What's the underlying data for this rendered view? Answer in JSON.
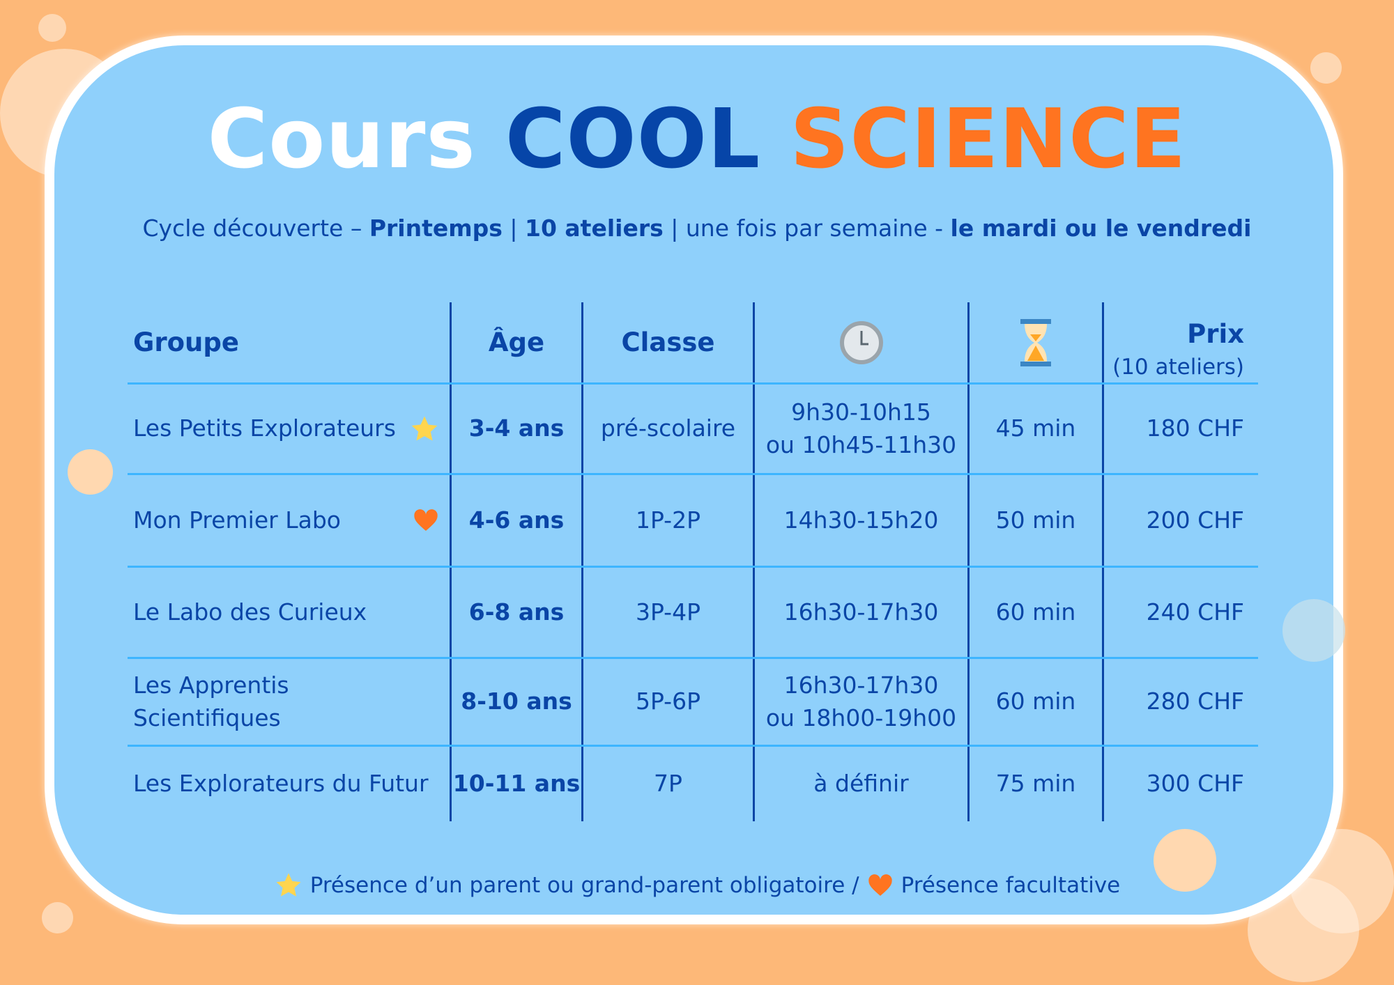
{
  "title": {
    "part1": "Cours",
    "part2": "COOL",
    "part3": "SCIENCE"
  },
  "subtitle": {
    "t1": "Cycle découverte – ",
    "b1": "Printemps",
    "t2": " | ",
    "b2": "10 ateliers",
    "t3": " | une fois par semaine - ",
    "b3": "le mardi ou le vendredi"
  },
  "table": {
    "headers": {
      "group": "Groupe",
      "age": "Âge",
      "classe": "Classe",
      "time_icon": "clock-icon",
      "duration_icon": "hourglass-icon",
      "price": "Prix",
      "price_sub": "(10 ateliers)"
    },
    "rows": [
      {
        "group": "Les Petits Explorateurs",
        "marker": "star",
        "age": "3-4 ans",
        "classe": "pré-scolaire",
        "time": "9h30-10h15",
        "time2": "ou 10h45-11h30",
        "duration": "45 min",
        "price": "180 CHF"
      },
      {
        "group": "Mon Premier Labo",
        "marker": "heart",
        "age": "4-6 ans",
        "classe": "1P-2P",
        "time": "14h30-15h20",
        "time2": "",
        "duration": "50 min",
        "price": "200 CHF"
      },
      {
        "group": "Le Labo des Curieux",
        "marker": "",
        "age": "6-8 ans",
        "classe": "3P-4P",
        "time": "16h30-17h30",
        "time2": "",
        "duration": "60 min",
        "price": "240 CHF"
      },
      {
        "group": "Les Apprentis Scientifiques",
        "marker": "",
        "age": "8-10 ans",
        "classe": "5P-6P",
        "time": "16h30-17h30",
        "time2": "ou 18h00-19h00",
        "duration": "60 min",
        "price": "280 CHF"
      },
      {
        "group": "Les Explorateurs du Futur",
        "marker": "",
        "age": "10-11 ans",
        "classe": "7P",
        "time": "à définir",
        "time2": "",
        "duration": "75 min",
        "price": "300 CHF"
      }
    ]
  },
  "legend": {
    "star_text": "Présence d’un parent ou grand-parent obligatoire /",
    "heart_text": "Présence facultative"
  },
  "colors": {
    "background": "#fdb878",
    "panel": "#8fd0fb",
    "navy": "#0645a8",
    "orange": "#ff7420",
    "star": "#ffd54f"
  }
}
